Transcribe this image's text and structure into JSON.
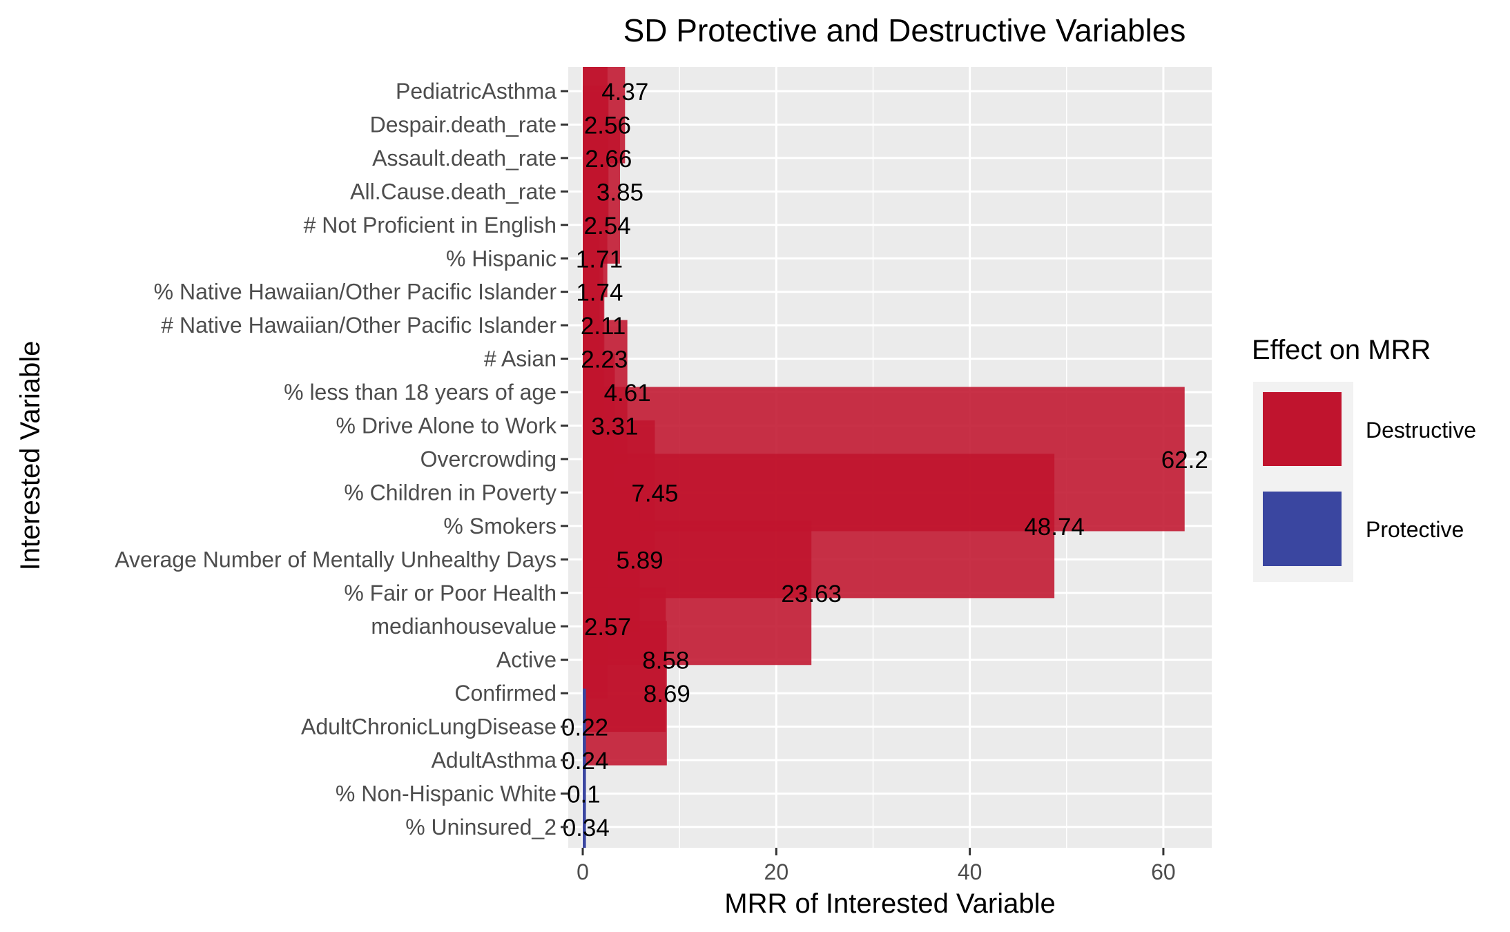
{
  "chart_data": {
    "type": "bar",
    "orientation": "horizontal",
    "title": "SD Protective and Destructive Variables",
    "xlabel": "MRR of Interested Variable",
    "ylabel": "Interested Variable",
    "xlim": [
      -1.5,
      65
    ],
    "xticks": [
      0,
      20,
      40,
      60
    ],
    "grid": true,
    "legend": {
      "title": "Effect on MRR",
      "position": "right",
      "entries": [
        {
          "label": "Destructive",
          "color": "#C0142E"
        },
        {
          "label": "Protective",
          "color": "#3A46A0"
        }
      ]
    },
    "categories": [
      "PediatricAsthma",
      "Despair.death_rate",
      "Assault.death_rate",
      "All.Cause.death_rate",
      "# Not Proficient in English",
      "% Hispanic",
      "% Native Hawaiian/Other Pacific Islander",
      "# Native Hawaiian/Other Pacific Islander",
      "# Asian",
      "% less than 18 years of age",
      "% Drive Alone to Work",
      "Overcrowding",
      "% Children in Poverty",
      "% Smokers",
      "Average Number of Mentally Unhealthy Days",
      "% Fair or Poor Health",
      "medianhousevalue",
      "Active",
      "Confirmed",
      "AdultChronicLungDisease",
      "AdultAsthma",
      "% Non-Hispanic White",
      "% Uninsured_2"
    ],
    "values": [
      4.37,
      2.56,
      2.66,
      3.85,
      2.54,
      1.71,
      1.74,
      2.11,
      2.23,
      4.61,
      3.31,
      62.2,
      7.45,
      48.74,
      5.89,
      23.63,
      2.57,
      8.58,
      8.69,
      0.22,
      0.24,
      0.1,
      0.34
    ],
    "value_labels": [
      "4.37",
      "2.56",
      "2.66",
      "3.85",
      "2.54",
      "1.71",
      "1.74",
      "2.11",
      "2.23",
      "4.61",
      "3.31",
      "62.2",
      "7.45",
      "48.74",
      "5.89",
      "23.63",
      "2.57",
      "8.58",
      "8.69",
      "0.22",
      "0.24",
      "0.1",
      "0.34"
    ],
    "effect": [
      "Destructive",
      "Destructive",
      "Destructive",
      "Destructive",
      "Destructive",
      "Destructive",
      "Destructive",
      "Destructive",
      "Destructive",
      "Destructive",
      "Destructive",
      "Destructive",
      "Destructive",
      "Destructive",
      "Destructive",
      "Destructive",
      "Destructive",
      "Destructive",
      "Destructive",
      "Protective",
      "Protective",
      "Protective",
      "Protective"
    ]
  },
  "colors": {
    "panel_background": "#EBEBEB",
    "gridline": "#FFFFFF",
    "destructive": "#C0142E",
    "protective": "#3A46A0",
    "text": "#000000",
    "axis_text": "#4D4D4D"
  }
}
